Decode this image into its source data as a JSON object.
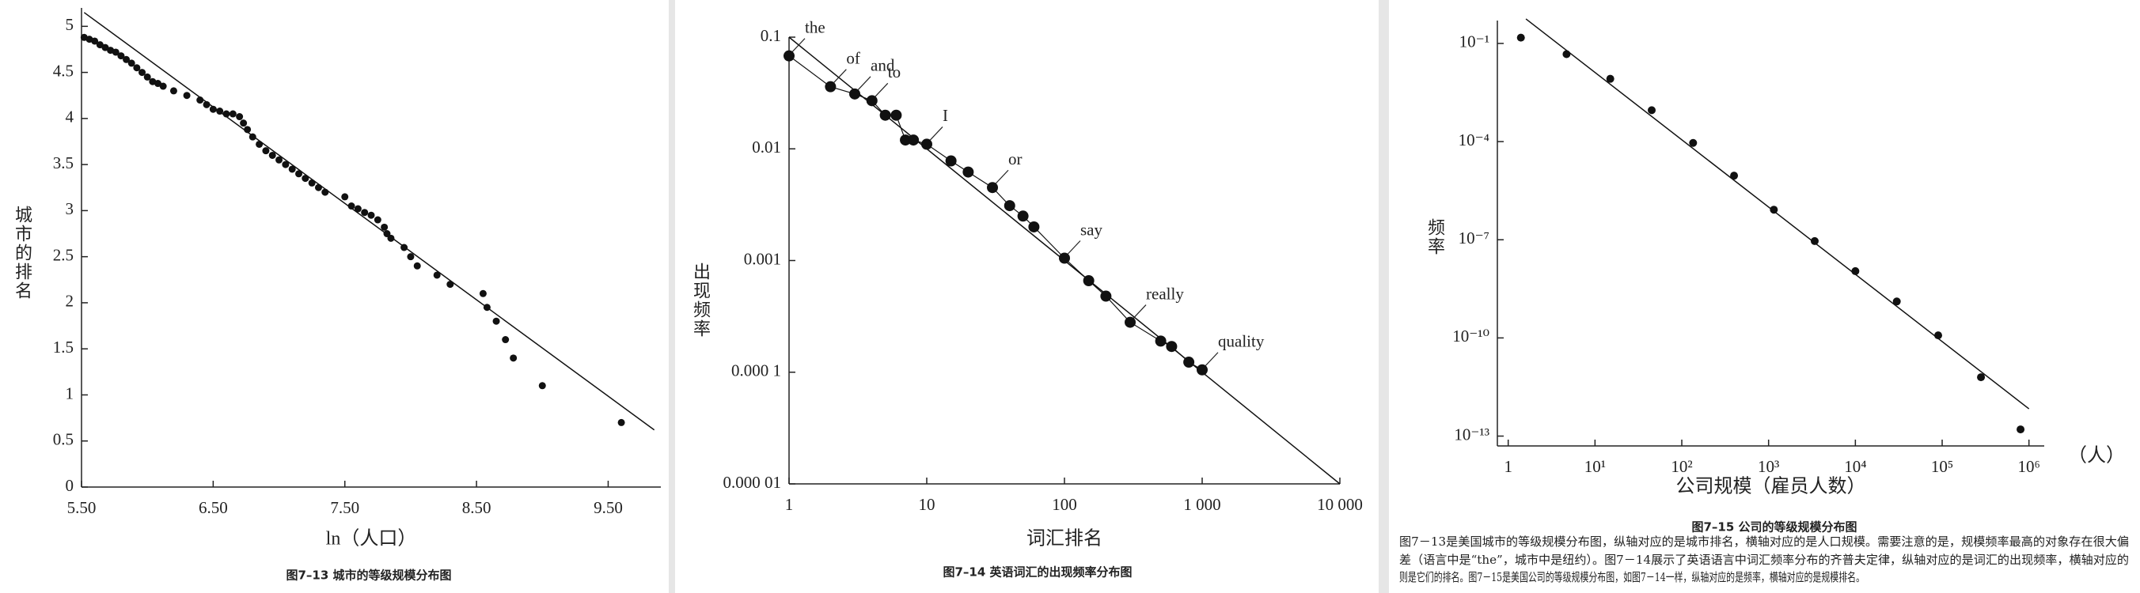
{
  "chart_data": [
    {
      "type": "scatter",
      "title": "图7–13 城市的等级规模分布图",
      "xlabel": "ln（人口）",
      "ylabel": "城市的排名",
      "color": "#111111",
      "x": [
        5.52,
        5.56,
        5.6,
        5.64,
        5.68,
        5.72,
        5.76,
        5.8,
        5.84,
        5.88,
        5.92,
        5.96,
        6.0,
        6.04,
        6.08,
        6.12,
        6.2,
        6.3,
        6.4,
        6.45,
        6.5,
        6.55,
        6.6,
        6.65,
        6.7,
        6.73,
        6.76,
        6.8,
        6.85,
        6.9,
        6.95,
        7.0,
        7.05,
        7.1,
        7.15,
        7.2,
        7.25,
        7.3,
        7.35,
        7.5,
        7.55,
        7.6,
        7.65,
        7.7,
        7.75,
        7.8,
        7.82,
        7.85,
        7.95,
        8.0,
        8.05,
        8.2,
        8.3,
        8.55,
        8.58,
        8.65,
        8.72,
        8.78,
        9.0,
        9.6
      ],
      "values": [
        4.88,
        4.86,
        4.84,
        4.8,
        4.77,
        4.74,
        4.72,
        4.68,
        4.64,
        4.6,
        4.55,
        4.5,
        4.45,
        4.4,
        4.38,
        4.35,
        4.3,
        4.25,
        4.2,
        4.15,
        4.1,
        4.08,
        4.05,
        4.05,
        4.02,
        3.95,
        3.88,
        3.8,
        3.72,
        3.65,
        3.6,
        3.55,
        3.5,
        3.45,
        3.4,
        3.35,
        3.3,
        3.25,
        3.2,
        3.15,
        3.05,
        3.02,
        2.98,
        2.95,
        2.9,
        2.82,
        2.75,
        2.7,
        2.6,
        2.5,
        2.4,
        2.3,
        2.2,
        2.1,
        1.95,
        1.8,
        1.6,
        1.4,
        1.1,
        0.7
      ],
      "fit": {
        "x": [
          5.52,
          9.85
        ],
        "values": [
          5.15,
          0.62
        ]
      },
      "xlim": [
        5.5,
        9.9
      ],
      "xticks": [
        {
          "value": 5.5,
          "label": "5.50"
        },
        {
          "value": 6.5,
          "label": "6.50"
        },
        {
          "value": 7.5,
          "label": "7.50"
        },
        {
          "value": 8.5,
          "label": "8.50"
        },
        {
          "value": 9.5,
          "label": "9.50"
        }
      ],
      "ylim": [
        0,
        5.2
      ],
      "yticks": [
        0,
        0.5,
        1,
        1.5,
        2,
        2.5,
        3,
        3.5,
        4,
        4.5,
        5
      ]
    },
    {
      "type": "scatter",
      "title": "图7–14 英语词汇的出现频率分布图",
      "xlabel": "词汇排名",
      "ylabel": "出现频率",
      "color": "#111111",
      "xscale": "log",
      "yscale": "log",
      "connect": true,
      "x": [
        1,
        2,
        3,
        4,
        5,
        6,
        7,
        8,
        10,
        15,
        20,
        30,
        40,
        50,
        60,
        100,
        150,
        200,
        300,
        500,
        600,
        800,
        1000
      ],
      "values": [
        0.068,
        0.036,
        0.031,
        0.027,
        0.02,
        0.02,
        0.012,
        0.012,
        0.011,
        0.0078,
        0.0062,
        0.0045,
        0.0031,
        0.0025,
        0.002,
        0.00105,
        0.00066,
        0.00048,
        0.00028,
        0.00019,
        0.00017,
        0.000123,
        0.000105
      ],
      "point_labels": [
        "the",
        "of",
        "and",
        "to",
        null,
        null,
        null,
        null,
        "I",
        null,
        null,
        "or",
        null,
        null,
        null,
        "say",
        null,
        null,
        "really",
        null,
        null,
        null,
        "quality"
      ],
      "fit": {
        "x": [
          1,
          10000
        ],
        "values": [
          0.1,
          1e-05
        ]
      },
      "xlim": [
        1,
        10000
      ],
      "xticks": [
        1,
        10,
        100,
        {
          "value": 1000,
          "label": "1 000"
        },
        {
          "value": 10000,
          "label": "10 000"
        }
      ],
      "ylim": [
        1e-05,
        0.1
      ],
      "yticks": [
        {
          "value": 1e-05,
          "label": "0.000 01"
        },
        {
          "value": 0.0001,
          "label": "0.000 1"
        },
        0.001,
        0.01,
        0.1
      ]
    },
    {
      "type": "scatter",
      "title": "图7–15 公司的等级规模分布图",
      "xlabel": "公司规模（雇员人数）",
      "ylabel": "频率",
      "xunit": "（人）",
      "color": "#111111",
      "xscale": "log",
      "yscale": "log",
      "x": [
        1.4,
        4.7,
        15,
        45,
        135,
        400,
        1150,
        3400,
        10000,
        30000,
        90000,
        280000,
        800000
      ],
      "values": [
        0.15,
        0.047,
        0.0083,
        0.00091,
        9.1e-05,
        9.1e-06,
        8.3e-07,
        9.1e-08,
        1.1e-08,
        1.3e-09,
        1.2e-10,
        6.3e-12,
        1.6e-13
      ],
      "fit": {
        "x": [
          1.6,
          1000000
        ],
        "values": [
          0.56,
          6.8e-13
        ]
      },
      "xlim": [
        0.75,
        1500000
      ],
      "xticks": [
        1,
        {
          "value": 10,
          "label": "10¹"
        },
        {
          "value": 100,
          "label": "10²"
        },
        {
          "value": 1000,
          "label": "10³"
        },
        {
          "value": 10000,
          "label": "10⁴"
        },
        {
          "value": 100000,
          "label": "10⁵"
        },
        {
          "value": 1000000,
          "label": "10⁶"
        }
      ],
      "ylim": [
        5e-14,
        0.5
      ],
      "yticks": [
        {
          "value": 1e-13,
          "label": "10⁻¹³"
        },
        {
          "value": 1e-10,
          "label": "10⁻¹⁰"
        },
        {
          "value": 1e-07,
          "label": "10⁻⁷"
        },
        {
          "value": 0.0001,
          "label": "10⁻⁴"
        },
        {
          "value": 0.1,
          "label": "10⁻¹"
        }
      ]
    }
  ],
  "body_text": [
    "图7－13是美国城市的等级规模分布图，纵轴对应的是城市排名，横轴对应的是人口规模。需要注意的是，规模频率最高的对象存在很大偏",
    "差（语言中是“the”，城市中是纽约）。图7－14展示了英语语言中词汇频率分布的齐普夫定律，纵轴对应的是词汇的出现频率，横轴对应的",
    "则是它们的排名。图7－15是美国公司的等级规模分布图，如图7－14一样，纵轴对应的是频率，横轴对应的是规模排名。"
  ]
}
